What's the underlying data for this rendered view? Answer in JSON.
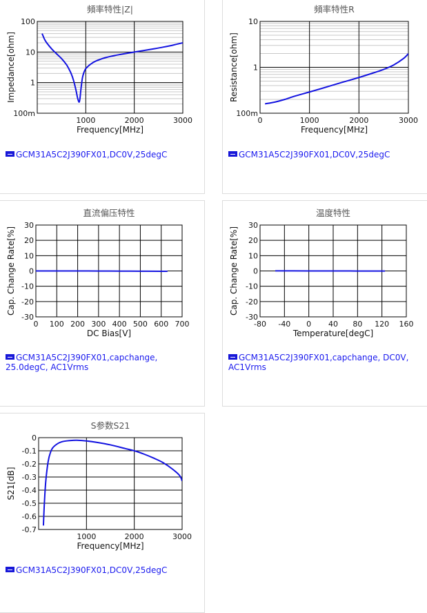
{
  "colors": {
    "line": "#1212e0",
    "grid_major": "#000000",
    "grid_minor": "#c8c8c8",
    "legend_text": "#1a1aee"
  },
  "chart_data": [
    {
      "id": "impedance",
      "type": "line",
      "title": "頻率特性|Z|",
      "xlabel": "Frequency[MHz]",
      "ylabel": "Impedance[ohm]",
      "xlim": [
        0,
        3000
      ],
      "ylim": [
        0.1,
        100
      ],
      "yscale": "log",
      "xticks": [
        0,
        1000,
        2000,
        3000
      ],
      "xtick_labels": [
        "",
        "1000",
        "2000",
        "3000"
      ],
      "yticks": [
        0.1,
        1,
        10,
        100
      ],
      "ytick_labels": [
        "100m",
        "1",
        "10",
        "100"
      ],
      "legend": "GCM31A5C2J390FX01,DC0V,25degC",
      "series": [
        {
          "name": "GCM31A5C2J390FX01,DC0V,25degC",
          "x": [
            100,
            150,
            200,
            300,
            400,
            500,
            600,
            650,
            700,
            750,
            800,
            830,
            860,
            880,
            900,
            930,
            960,
            1000,
            1100,
            1200,
            1400,
            1600,
            1800,
            2000,
            2200,
            2400,
            2600,
            2800,
            3000
          ],
          "y": [
            40,
            26,
            19.5,
            12.5,
            8.7,
            6.1,
            3.9,
            2.85,
            1.95,
            1.15,
            0.55,
            0.32,
            0.23,
            0.3,
            0.6,
            1.4,
            2.1,
            2.85,
            4.0,
            5.0,
            6.5,
            7.7,
            8.8,
            10.0,
            11.2,
            12.7,
            14.5,
            16.8,
            20.0
          ]
        }
      ]
    },
    {
      "id": "resistance",
      "type": "line",
      "title": "頻率特性R",
      "xlabel": "Frequency[MHz]",
      "ylabel": "Resistance[ohm]",
      "xlim": [
        0,
        3000
      ],
      "ylim": [
        0.1,
        10
      ],
      "yscale": "log",
      "xticks": [
        0,
        1000,
        2000,
        3000
      ],
      "xtick_labels": [
        "0",
        "1000",
        "2000",
        "3000"
      ],
      "yticks": [
        0.1,
        1,
        10
      ],
      "ytick_labels": [
        "100m",
        "1",
        "10"
      ],
      "legend": "GCM31A5C2J390FX01,DC0V,25degC",
      "series": [
        {
          "name": "GCM31A5C2J390FX01,DC0V,25degC",
          "x": [
            100,
            300,
            500,
            700,
            1000,
            1300,
            1600,
            2000,
            2300,
            2500,
            2700,
            2900,
            3000
          ],
          "y": [
            0.16,
            0.175,
            0.2,
            0.235,
            0.29,
            0.36,
            0.45,
            0.6,
            0.76,
            0.9,
            1.12,
            1.55,
            1.98
          ]
        }
      ]
    },
    {
      "id": "dcbias",
      "type": "line",
      "title": "直流偏压特性",
      "xlabel": "DC Bias[V]",
      "ylabel": "Cap. Change Rate[%]",
      "xlim": [
        0,
        700
      ],
      "ylim": [
        -30,
        30
      ],
      "xticks": [
        0,
        100,
        200,
        300,
        400,
        500,
        600,
        700
      ],
      "xtick_labels": [
        "0",
        "100",
        "200",
        "300",
        "400",
        "500",
        "600",
        "700"
      ],
      "yticks": [
        -30,
        -20,
        -10,
        0,
        10,
        20,
        30
      ],
      "ytick_labels": [
        "-30",
        "-20",
        "-10",
        "0",
        "10",
        "20",
        "30"
      ],
      "legend": "GCM31A5C2J390FX01,capchange,\n25.0degC, AC1Vrms",
      "series": [
        {
          "name": "capchange",
          "x": [
            0,
            100,
            200,
            300,
            400,
            500,
            600,
            630
          ],
          "y": [
            0,
            0,
            0,
            -0.05,
            -0.1,
            -0.15,
            -0.2,
            -0.2
          ]
        }
      ]
    },
    {
      "id": "temperature",
      "type": "line",
      "title": "温度特性",
      "xlabel": "Temperature[degC]",
      "ylabel": "Cap. Change Rate[%]",
      "xlim": [
        -80,
        160
      ],
      "ylim": [
        -30,
        30
      ],
      "xticks": [
        -80,
        -40,
        0,
        40,
        80,
        120,
        160
      ],
      "xtick_labels": [
        "-80",
        "-40",
        "0",
        "40",
        "80",
        "120",
        "160"
      ],
      "yticks": [
        -30,
        -20,
        -10,
        0,
        10,
        20,
        30
      ],
      "ytick_labels": [
        "-30",
        "-20",
        "-10",
        "0",
        "10",
        "20",
        "30"
      ],
      "legend": "GCM31A5C2J390FX01,capchange, DC0V,\nAC1Vrms",
      "series": [
        {
          "name": "capchange",
          "x": [
            -55,
            0,
            25,
            60,
            100,
            125
          ],
          "y": [
            0.05,
            0.02,
            0,
            -0.02,
            -0.05,
            -0.08
          ]
        }
      ]
    },
    {
      "id": "s21",
      "type": "line",
      "title": "S参数S21",
      "xlabel": "Frequency[MHz]",
      "ylabel": "S21[dB]",
      "xlim": [
        0,
        3000
      ],
      "ylim": [
        -0.7,
        0
      ],
      "xticks": [
        0,
        1000,
        2000,
        3000
      ],
      "xtick_labels": [
        "",
        "1000",
        "2000",
        "3000"
      ],
      "yticks": [
        -0.7,
        -0.6,
        -0.5,
        -0.4,
        -0.3,
        -0.2,
        -0.1,
        0
      ],
      "ytick_labels": [
        "-0.7",
        "-0.6",
        "-0.5",
        "-0.4",
        "-0.3",
        "-0.2",
        "-0.1",
        "0"
      ],
      "legend": "GCM31A5C2J390FX01,DC0V,25degC",
      "series": [
        {
          "name": "GCM31A5C2J390FX01,DC0V,25degC",
          "x": [
            100,
            120,
            150,
            200,
            250,
            300,
            400,
            500,
            600,
            700,
            800,
            1000,
            1200,
            1500,
            1800,
            2000,
            2200,
            2400,
            2600,
            2800,
            2950,
            3000
          ],
          "y": [
            -0.67,
            -0.5,
            -0.33,
            -0.18,
            -0.11,
            -0.075,
            -0.045,
            -0.03,
            -0.024,
            -0.021,
            -0.02,
            -0.025,
            -0.035,
            -0.055,
            -0.082,
            -0.1,
            -0.125,
            -0.155,
            -0.19,
            -0.24,
            -0.29,
            -0.33
          ]
        }
      ]
    }
  ]
}
